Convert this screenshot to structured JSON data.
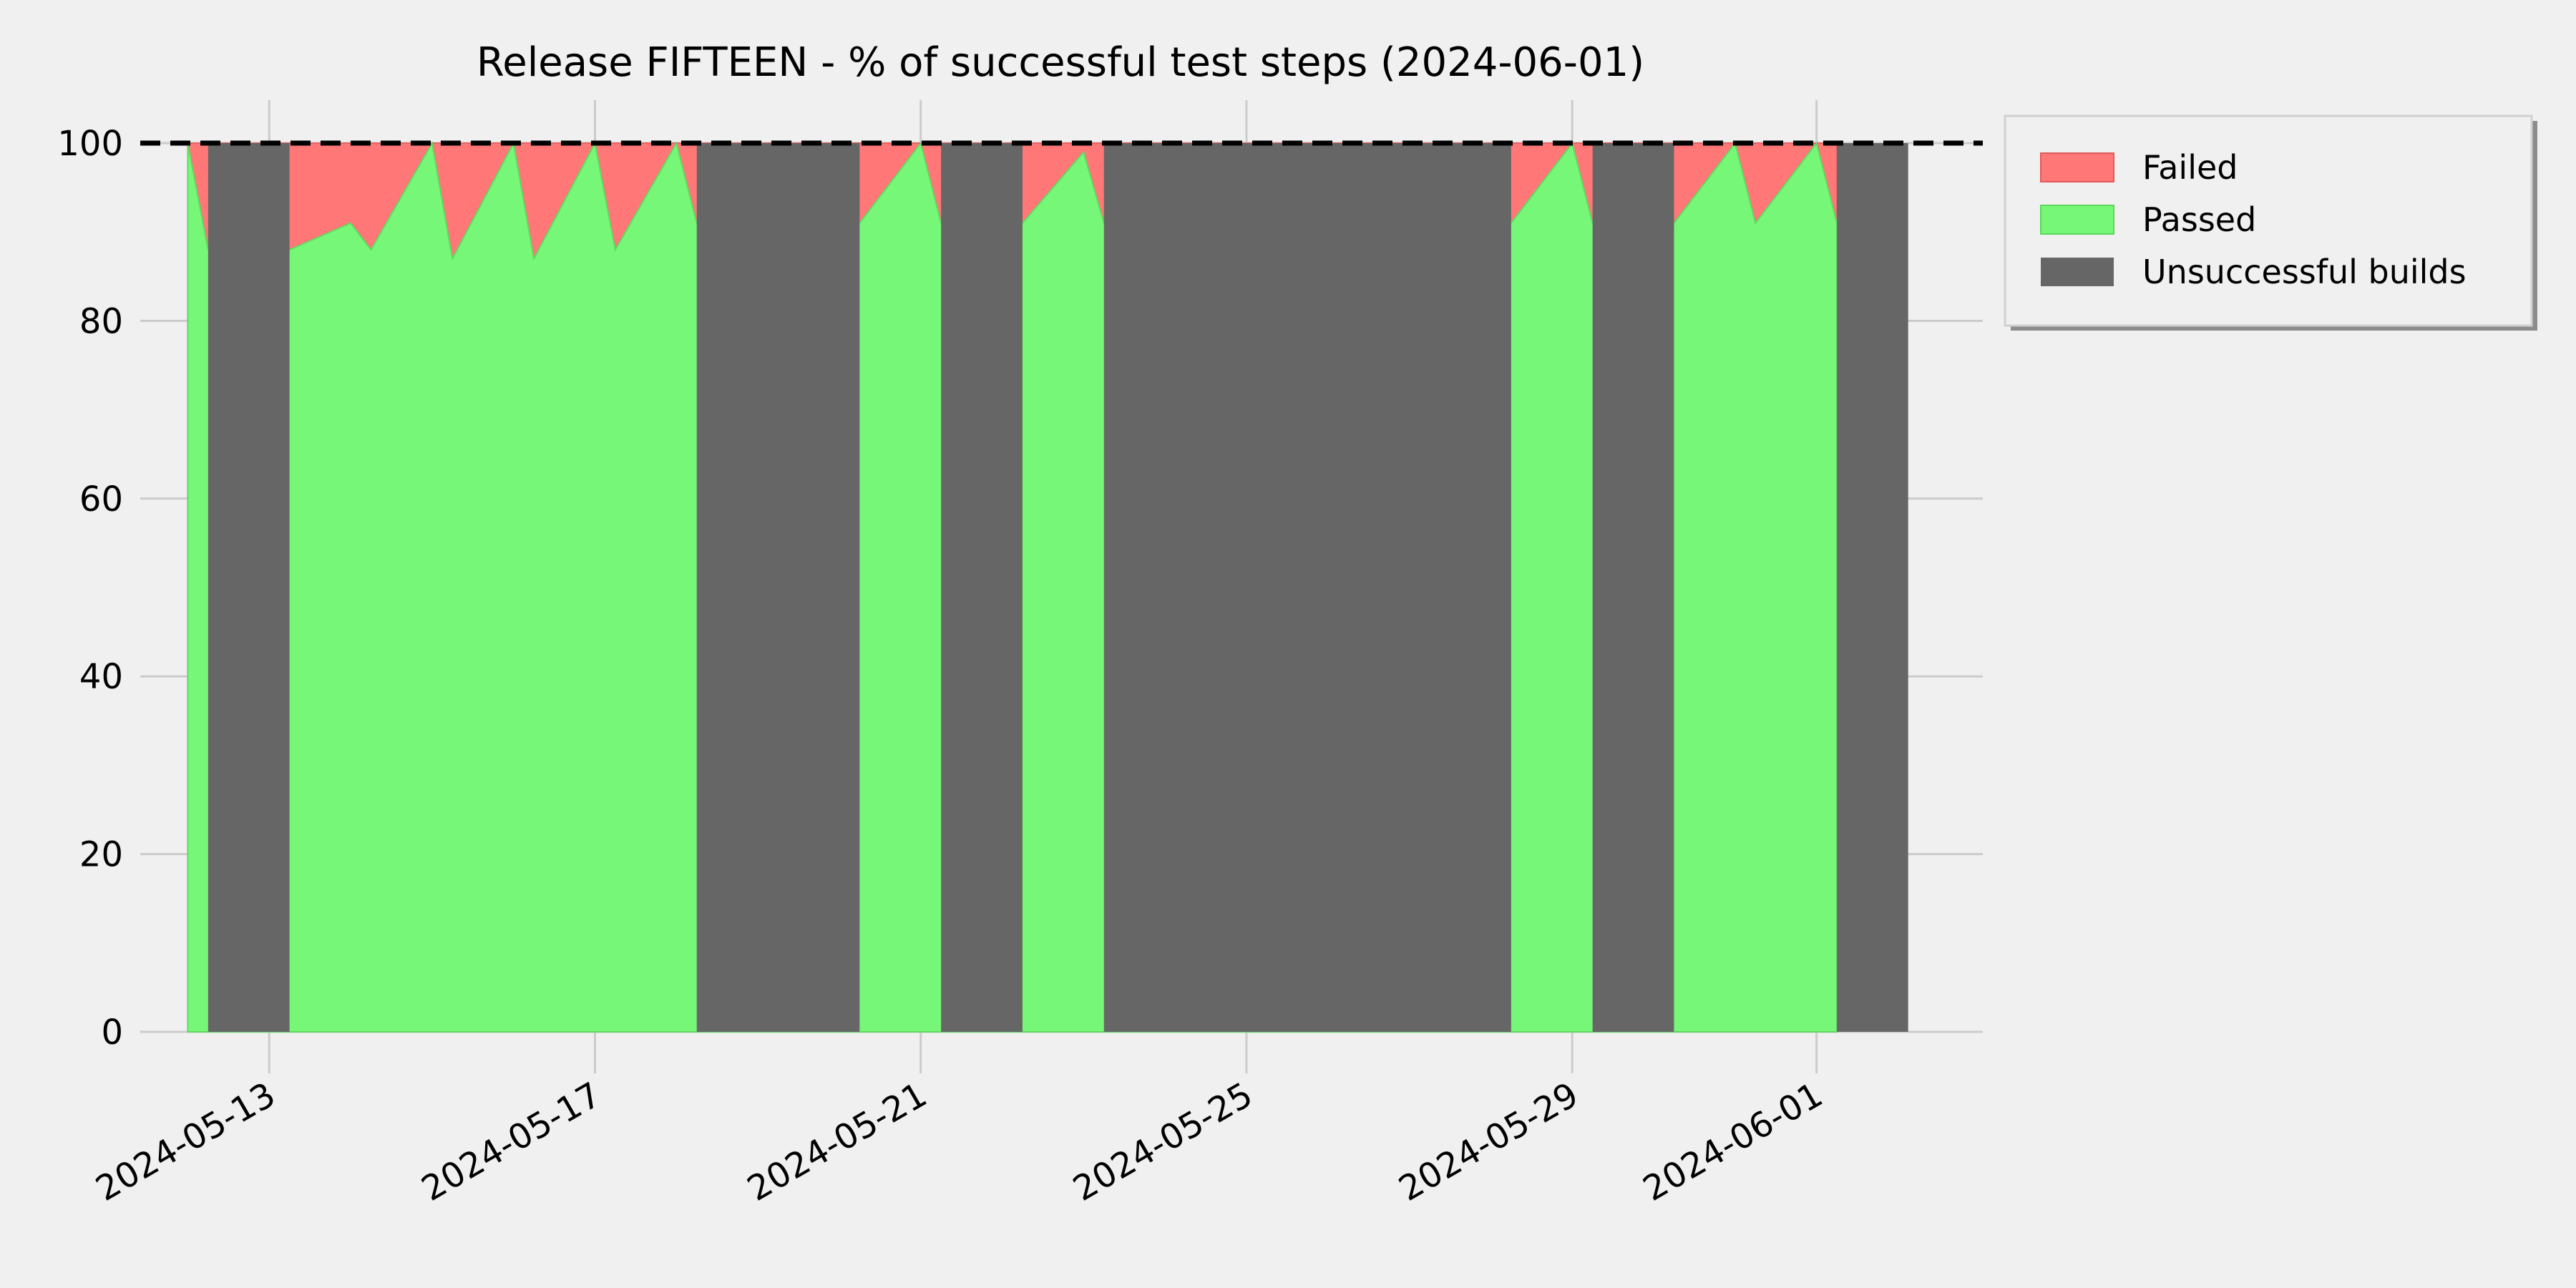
{
  "chart_data": {
    "type": "area",
    "title": "Release FIFTEEN - % of successful test steps (2024-06-01)",
    "xlabel": "",
    "ylabel": "",
    "ylim": [
      0,
      100
    ],
    "xlim": [
      "2024-05-11T10:00",
      "2024-06-03T01:00"
    ],
    "yticks": [
      0,
      20,
      40,
      60,
      80,
      100
    ],
    "xticks": [
      "2024-05-13",
      "2024-05-17",
      "2024-05-21",
      "2024-05-25",
      "2024-05-29",
      "2024-06-01"
    ],
    "grid": true,
    "reference_line": {
      "y": 100,
      "style": "dashed",
      "color": "#000000"
    },
    "legend": {
      "position": "outside-top-right",
      "entries": [
        "Failed",
        "Passed",
        "Unsuccessful builds"
      ]
    },
    "colors": {
      "failed": "#ff7777",
      "passed": "#77f777",
      "unsuccessful": "#666666",
      "background": "#f0f0f0",
      "grid": "#cbcbcb"
    },
    "series": [
      {
        "name": "Passed",
        "points": [
          [
            "2024-05-12T00:00",
            100
          ],
          [
            "2024-05-12T06:00",
            88
          ],
          [
            "2024-05-13T06:00",
            88
          ],
          [
            "2024-05-14T00:00",
            91
          ],
          [
            "2024-05-14T06:00",
            88
          ],
          [
            "2024-05-15T00:00",
            100
          ],
          [
            "2024-05-15T06:00",
            87
          ],
          [
            "2024-05-16T00:00",
            100
          ],
          [
            "2024-05-16T06:00",
            87
          ],
          [
            "2024-05-17T00:00",
            100
          ],
          [
            "2024-05-17T06:00",
            88
          ],
          [
            "2024-05-18T00:00",
            100
          ],
          [
            "2024-05-18T06:00",
            91
          ],
          [
            "2024-05-20T06:00",
            91
          ],
          [
            "2024-05-21T00:00",
            100
          ],
          [
            "2024-05-21T06:00",
            91
          ],
          [
            "2024-05-22T06:00",
            91
          ],
          [
            "2024-05-23T00:00",
            99
          ],
          [
            "2024-05-23T06:00",
            91
          ],
          [
            "2024-05-28T06:00",
            91
          ],
          [
            "2024-05-29T00:00",
            100
          ],
          [
            "2024-05-29T06:00",
            91
          ],
          [
            "2024-05-30T06:00",
            91
          ],
          [
            "2024-05-31T00:00",
            100
          ],
          [
            "2024-05-31T06:00",
            91
          ],
          [
            "2024-06-01T00:00",
            100
          ],
          [
            "2024-06-01T06:00",
            91
          ]
        ]
      },
      {
        "name": "Unsuccessful builds",
        "ranges": [
          [
            "2024-05-12T06:00",
            "2024-05-13T06:00"
          ],
          [
            "2024-05-18T06:00",
            "2024-05-20T06:00"
          ],
          [
            "2024-05-21T06:00",
            "2024-05-22T06:00"
          ],
          [
            "2024-05-23T06:00",
            "2024-05-28T06:00"
          ],
          [
            "2024-05-29T06:00",
            "2024-05-30T06:00"
          ],
          [
            "2024-06-01T06:00",
            "2024-06-02T03:00"
          ]
        ]
      }
    ]
  }
}
